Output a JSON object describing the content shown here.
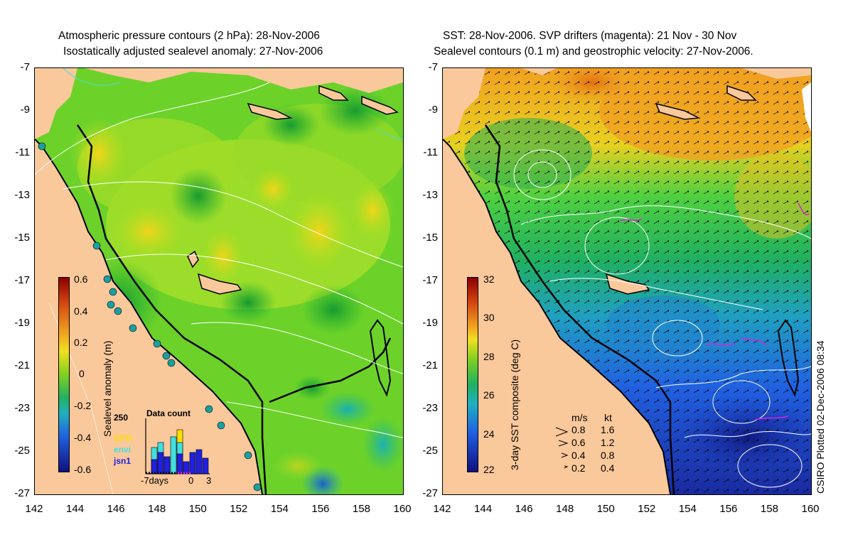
{
  "left_panel": {
    "title_line1": "Atmospheric pressure contours (2 hPa): 28-Nov-2006",
    "title_line2": "Isostatically adjusted sealevel anomaly: 27-Nov-2006",
    "colorbar_label": "Sealevel anomaly (m)",
    "colorbar_ticks": [
      "0.6",
      "0.4",
      "0.2",
      "0",
      "-0.2",
      "-0.4",
      "-0.6"
    ],
    "inset": {
      "title": "Data count",
      "ymax_label": "250",
      "missions": [
        {
          "name": "GFO",
          "color": "#ffe000"
        },
        {
          "name": "envi",
          "color": "#40e0e0"
        },
        {
          "name": "jsn1",
          "color": "#2020e0"
        }
      ],
      "x_labels": [
        "-7days",
        "0",
        "3"
      ]
    }
  },
  "right_panel": {
    "title_line1": "SST: 28-Nov-2006. SVP drifters (magenta): 21 Nov - 30 Nov",
    "title_line2": "Sealevel contours (0.1 m) and geostrophic velocity: 27-Nov-2006.",
    "colorbar_label": "3-day SST composite (deg C)",
    "colorbar_ticks": [
      "32",
      "30",
      "28",
      "26",
      "24",
      "22"
    ],
    "velocity_legend": {
      "header_ms": "m/s",
      "header_kt": "kt",
      "rows": [
        {
          "ms": "0.8",
          "kt": "1.6"
        },
        {
          "ms": "0.6",
          "kt": "1.2"
        },
        {
          "ms": "0.4",
          "kt": "0.8"
        },
        {
          "ms": "0.2",
          "kt": "0.4"
        }
      ]
    }
  },
  "axes": {
    "y_ticks": [
      "-7",
      "-9",
      "-11",
      "-13",
      "-15",
      "-17",
      "-19",
      "-21",
      "-23",
      "-25",
      "-27"
    ],
    "x_ticks": [
      "142",
      "144",
      "146",
      "148",
      "150",
      "152",
      "154",
      "156",
      "158",
      "160"
    ]
  },
  "credit": "CSIRO Plotted 02-Dec-2006 08:34",
  "colors": {
    "land": "#f9c89b",
    "ocean_sla_base": "#5ccf2a",
    "sst_warm": "#f0a020",
    "sst_mid": "#30c040",
    "sst_cool": "#2040c0"
  }
}
